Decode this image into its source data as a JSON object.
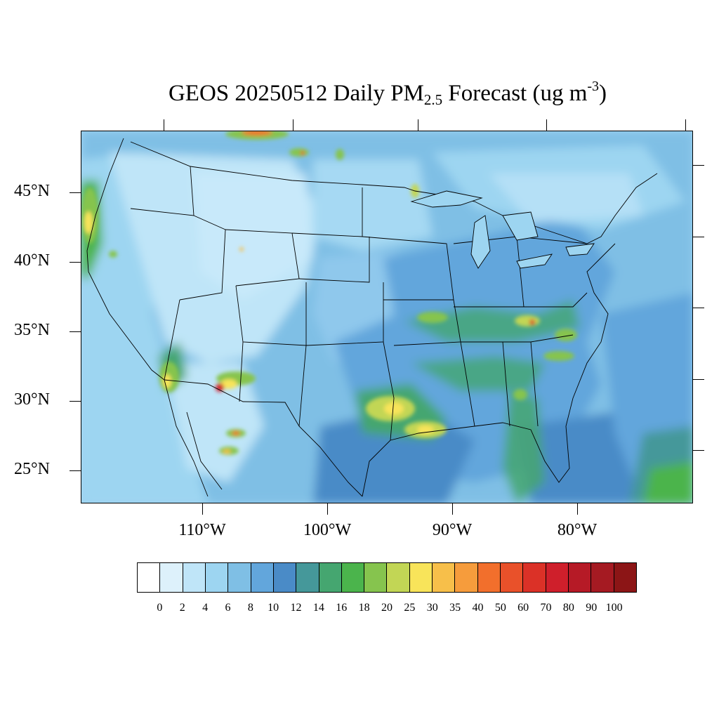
{
  "title": {
    "main": "GEOS 20250512 Daily PM",
    "sub": "2.5",
    "after": " Forecast (ug m",
    "sup": "-3",
    "close": ")"
  },
  "map": {
    "region": "CONUS",
    "lat_labels": [
      "45°N",
      "40°N",
      "35°N",
      "30°N",
      "25°N"
    ],
    "lon_labels": [
      "110°W",
      "100°W",
      "90°W",
      "80°W"
    ],
    "background_color": "#9fd2f1"
  },
  "colorbar": {
    "colors": [
      "#ffffff",
      "#ddf1fb",
      "#bfe5f8",
      "#9dd5f1",
      "#7fbfe5",
      "#62a6dc",
      "#4a8bc7",
      "#45989a",
      "#45a670",
      "#4bb44c",
      "#86c44e",
      "#c2d655",
      "#f8e45a",
      "#f7bf4a",
      "#f69c3c",
      "#f26f2c",
      "#e9512a",
      "#db3127",
      "#cf1f2b",
      "#b61a26",
      "#a51a22",
      "#8c1516"
    ],
    "labels": [
      "0",
      "2",
      "4",
      "6",
      "8",
      "10",
      "12",
      "14",
      "16",
      "18",
      "20",
      "25",
      "30",
      "35",
      "40",
      "50",
      "60",
      "70",
      "80",
      "90",
      "100"
    ]
  }
}
